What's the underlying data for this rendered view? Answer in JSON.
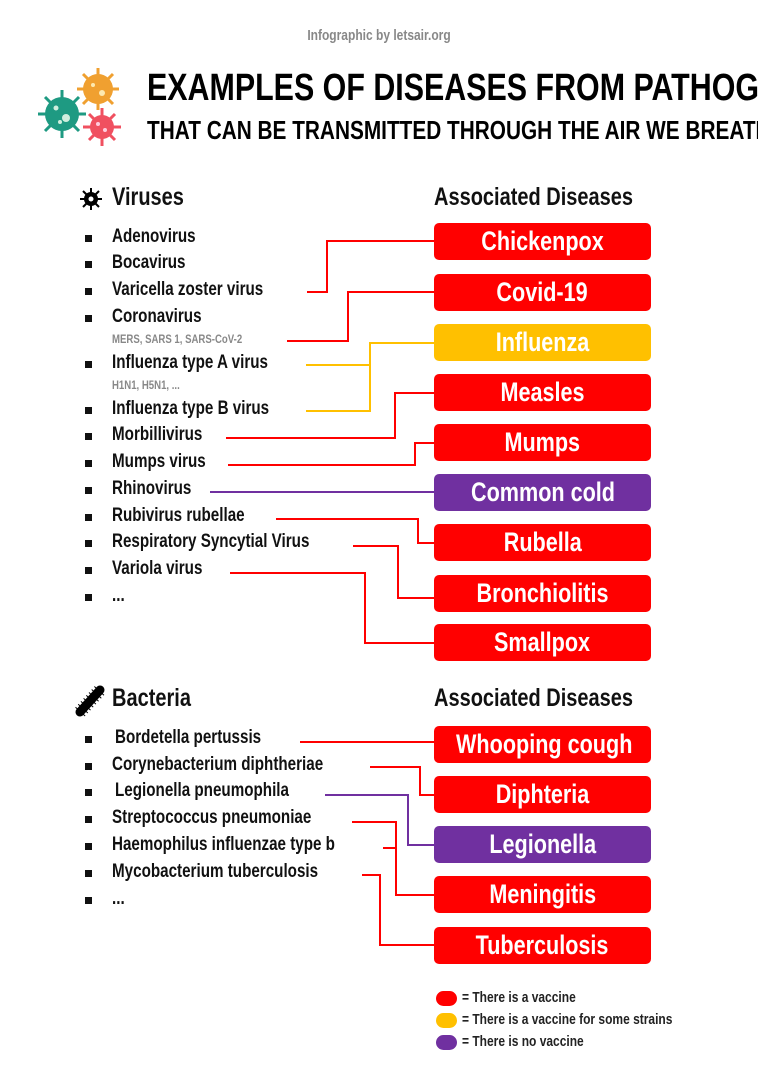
{
  "credit": "Infographic by letsair.org",
  "title": "EXAMPLES OF DISEASES FROM PATHOGENS",
  "subtitle": "THAT CAN BE TRANSMITTED THROUGH THE AIR WE BREATHE",
  "colors": {
    "vaccine": "#ff0000",
    "some_strains": "#ffc000",
    "no_vaccine": "#7030a0"
  },
  "viruses": {
    "heading": "Viruses",
    "diseases_heading": "Associated Diseases",
    "items": [
      "Adenovirus",
      "Bocavirus",
      "Varicella zoster virus",
      "Coronavirus",
      "Influenza type A virus",
      "Influenza type B virus",
      "Morbillivirus",
      "Mumps virus",
      "Rhinovirus",
      "Rubivirus rubellae",
      "Respiratory Syncytial Virus",
      "Variola virus",
      "..."
    ],
    "subnotes": [
      "MERS, SARS 1, SARS-CoV-2",
      "H1N1, H5N1, ..."
    ],
    "diseases": [
      "Chickenpox",
      "Covid-19",
      "Influenza",
      "Measles",
      "Mumps",
      "Common cold",
      "Rubella",
      "Bronchiolitis",
      "Smallpox"
    ]
  },
  "bacteria": {
    "heading": "Bacteria",
    "diseases_heading": "Associated Diseases",
    "items": [
      "Bordetella pertussis",
      "Corynebacterium diphtheriae",
      "Legionella pneumophila",
      "Streptococcus pneumoniae",
      "Haemophilus influenzae type b",
      "Mycobacterium tuberculosis",
      "..."
    ],
    "diseases": [
      "Whooping cough",
      "Diphteria",
      "Legionella",
      "Meningitis",
      "Tuberculosis"
    ]
  },
  "legend": [
    "= There is a vaccine",
    "= There is a vaccine for some strains",
    "= There is no vaccine"
  ]
}
